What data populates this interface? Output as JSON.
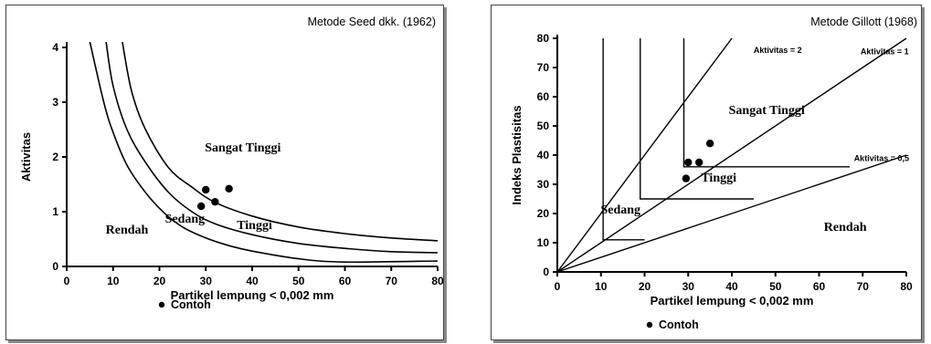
{
  "chart_data": [
    {
      "type": "line",
      "title": "Metode Seed dkk. (1962)",
      "xlabel": "Partikel lempung < 0,002 mm",
      "ylabel": "Aktivitas",
      "xlim": [
        0,
        80
      ],
      "ylim": [
        0,
        4
      ],
      "xticks": [
        "0",
        "10",
        "20",
        "30",
        "40",
        "50",
        "60",
        "70",
        "80"
      ],
      "yticks": [
        "0",
        "1",
        "2",
        "3",
        "4"
      ],
      "curves": [
        {
          "points": [
            [
              5,
              4.1
            ],
            [
              8,
              3.0
            ],
            [
              10,
              2.45
            ],
            [
              13,
              1.85
            ],
            [
              17,
              1.35
            ],
            [
              21,
              0.98
            ],
            [
              25,
              0.72
            ],
            [
              30,
              0.52
            ],
            [
              35,
              0.38
            ],
            [
              40,
              0.28
            ],
            [
              50,
              0.14
            ],
            [
              60,
              0.08
            ],
            [
              80,
              0.1
            ]
          ]
        },
        {
          "points": [
            [
              8.5,
              4.1
            ],
            [
              10,
              3.3
            ],
            [
              13,
              2.5
            ],
            [
              17,
              1.9
            ],
            [
              22,
              1.35
            ],
            [
              27,
              1.0
            ],
            [
              32,
              0.78
            ],
            [
              40,
              0.58
            ],
            [
              50,
              0.42
            ],
            [
              60,
              0.33
            ],
            [
              70,
              0.27
            ],
            [
              80,
              0.25
            ]
          ]
        },
        {
          "points": [
            [
              12,
              4.1
            ],
            [
              14,
              3.2
            ],
            [
              17,
              2.5
            ],
            [
              22,
              1.8
            ],
            [
              27,
              1.45
            ],
            [
              32,
              1.17
            ],
            [
              40,
              0.92
            ],
            [
              50,
              0.72
            ],
            [
              60,
              0.6
            ],
            [
              70,
              0.52
            ],
            [
              80,
              0.47
            ]
          ]
        }
      ],
      "regions": [
        {
          "label": "Rendah",
          "x": 13,
          "y": 0.6
        },
        {
          "label": "Sedang",
          "x": 25.5,
          "y": 0.8
        },
        {
          "label": "Tinggi",
          "x": 40.5,
          "y": 0.68
        },
        {
          "label": "Sangat Tinggi",
          "x": 38,
          "y": 2.1
        }
      ],
      "points": [
        [
          29,
          1.1
        ],
        [
          30,
          1.4
        ],
        [
          32,
          1.18
        ],
        [
          35,
          1.42
        ]
      ],
      "legend": "Contoh"
    },
    {
      "type": "line",
      "title": "Metode Gillott (1968)",
      "xlabel": "Partikel lempung < 0,002 mm",
      "ylabel": "Indeks Plastisitas",
      "xlim": [
        0,
        80
      ],
      "ylim": [
        0,
        80
      ],
      "xticks": [
        "0",
        "10",
        "20",
        "30",
        "40",
        "50",
        "60",
        "70",
        "80"
      ],
      "yticks": [
        "0",
        "10",
        "20",
        "30",
        "40",
        "50",
        "60",
        "70",
        "80"
      ],
      "activity_lines": [
        {
          "label": "Aktivitas = 2",
          "slope": 2
        },
        {
          "label": "Aktivitas = 1",
          "slope": 1
        },
        {
          "label": "Aktivitas = 0,5",
          "slope": 0.5
        }
      ],
      "boundaries": [
        {
          "points": [
            [
              10.5,
              80
            ],
            [
              10.5,
              11
            ],
            [
              20,
              11
            ]
          ]
        },
        {
          "points": [
            [
              19,
              80
            ],
            [
              19,
              25
            ],
            [
              45,
              25
            ]
          ]
        },
        {
          "points": [
            [
              29,
              80
            ],
            [
              29,
              36
            ],
            [
              67,
              36
            ]
          ]
        }
      ],
      "regions": [
        {
          "label": "Sedang",
          "x": 14.5,
          "y": 20
        },
        {
          "label": "Tinggi",
          "x": 37,
          "y": 31
        },
        {
          "label": "Sangat Tinggi",
          "x": 48,
          "y": 54
        },
        {
          "label": "Rendah",
          "x": 66,
          "y": 14
        }
      ],
      "points": [
        [
          29.5,
          32
        ],
        [
          30,
          37.5
        ],
        [
          32.5,
          37.5
        ],
        [
          35,
          44
        ]
      ],
      "legend": "Contoh"
    }
  ]
}
